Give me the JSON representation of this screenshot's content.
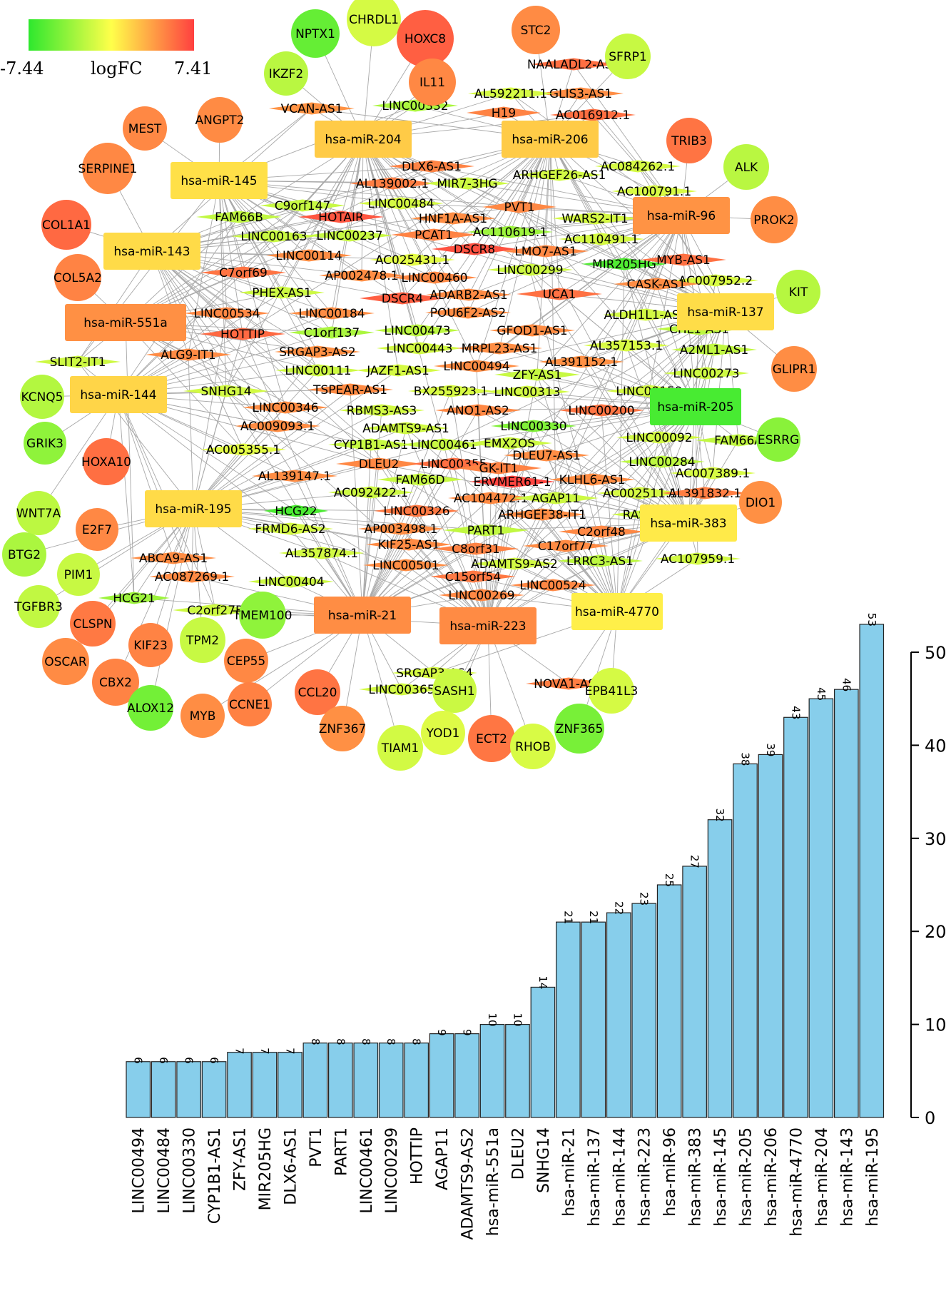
{
  "legend": {
    "min_label": "-7.44",
    "max_label": "7.41",
    "title": "logFC",
    "min": -7.44,
    "max": 7.41,
    "colors": [
      "#2ee82e",
      "#ffff4a",
      "#ff4040"
    ]
  },
  "network": {
    "mirna_nodes": [
      {
        "id": "hsa-miR-204",
        "logfc": 2.0
      },
      {
        "id": "hsa-miR-206",
        "logfc": 2.0
      },
      {
        "id": "hsa-miR-145",
        "logfc": 1.2
      },
      {
        "id": "hsa-miR-143",
        "logfc": 1.4
      },
      {
        "id": "hsa-miR-551a",
        "logfc": 4.3
      },
      {
        "id": "hsa-miR-96",
        "logfc": 4.2
      },
      {
        "id": "hsa-miR-137",
        "logfc": 1.3
      },
      {
        "id": "hsa-miR-144",
        "logfc": 1.6
      },
      {
        "id": "hsa-miR-205",
        "logfc": -6.5
      },
      {
        "id": "hsa-miR-195",
        "logfc": 1.4
      },
      {
        "id": "hsa-miR-383",
        "logfc": 0.8
      },
      {
        "id": "hsa-miR-21",
        "logfc": 4.4
      },
      {
        "id": "hsa-miR-223",
        "logfc": 4.5
      },
      {
        "id": "hsa-miR-4770",
        "logfc": 0.6
      }
    ],
    "mrna_nodes": [
      {
        "id": "NPTX1",
        "logfc": -5.5
      },
      {
        "id": "CHRDL1",
        "logfc": -1.5
      },
      {
        "id": "HOXC8",
        "logfc": 6.2
      },
      {
        "id": "STC2",
        "logfc": 4.5
      },
      {
        "id": "SFRP1",
        "logfc": -2.0
      },
      {
        "id": "IKZF2",
        "logfc": -2.5
      },
      {
        "id": "IL11",
        "logfc": 4.6
      },
      {
        "id": "MEST",
        "logfc": 4.6
      },
      {
        "id": "ANGPT2",
        "logfc": 4.5
      },
      {
        "id": "TRIB3",
        "logfc": 5.4
      },
      {
        "id": "ALK",
        "logfc": -2.5
      },
      {
        "id": "SERPINE1",
        "logfc": 4.6
      },
      {
        "id": "PROK2",
        "logfc": 4.4
      },
      {
        "id": "COL1A1",
        "logfc": 5.8
      },
      {
        "id": "COL5A2",
        "logfc": 4.8
      },
      {
        "id": "KIT",
        "logfc": -2.6
      },
      {
        "id": "GLIPR1",
        "logfc": 4.4
      },
      {
        "id": "KCNQ5",
        "logfc": -2.7
      },
      {
        "id": "GRIK3",
        "logfc": -4.0
      },
      {
        "id": "ESRRG",
        "logfc": -4.2
      },
      {
        "id": "HOXA10",
        "logfc": 5.6
      },
      {
        "id": "DIO1",
        "logfc": 4.3
      },
      {
        "id": "WNT7A",
        "logfc": -2.4
      },
      {
        "id": "E2F7",
        "logfc": 4.6
      },
      {
        "id": "BTG2",
        "logfc": -3.0
      },
      {
        "id": "PIM1",
        "logfc": -2.0
      },
      {
        "id": "TGFBR3",
        "logfc": -2.2
      },
      {
        "id": "CLSPN",
        "logfc": 5.2
      },
      {
        "id": "TMEM100",
        "logfc": -4.0
      },
      {
        "id": "KIF23",
        "logfc": 4.8
      },
      {
        "id": "TPM2",
        "logfc": -2.0
      },
      {
        "id": "OSCAR",
        "logfc": 4.5
      },
      {
        "id": "CEP55",
        "logfc": 4.6
      },
      {
        "id": "CBX2",
        "logfc": 4.8
      },
      {
        "id": "ALOX12",
        "logfc": -5.0
      },
      {
        "id": "MYB",
        "logfc": 4.4
      },
      {
        "id": "CCNE1",
        "logfc": 4.9
      },
      {
        "id": "CCL20",
        "logfc": 5.4
      },
      {
        "id": "SASH1",
        "logfc": -1.9
      },
      {
        "id": "EPB41L3",
        "logfc": -1.5
      },
      {
        "id": "ZNF367",
        "logfc": 4.3
      },
      {
        "id": "YOD1",
        "logfc": -1.2
      },
      {
        "id": "TIAM1",
        "logfc": -1.6
      },
      {
        "id": "ECT2",
        "logfc": 5.3
      },
      {
        "id": "RHOB",
        "logfc": -1.4
      },
      {
        "id": "ZNF365",
        "logfc": -4.8
      }
    ],
    "lncrna_nodes": [
      {
        "id": "NAALADL2-AS2",
        "logfc": 5.6
      },
      {
        "id": "GLIS3-AS1",
        "logfc": 4.4
      },
      {
        "id": "AL592211.1",
        "logfc": -1.5
      },
      {
        "id": "VCAN-AS1",
        "logfc": 4.2
      },
      {
        "id": "LINC00332",
        "logfc": -3.0
      },
      {
        "id": "H19",
        "logfc": 4.8
      },
      {
        "id": "AC016912.1",
        "logfc": 5.6
      },
      {
        "id": "DLX6-AS1",
        "logfc": 4.8
      },
      {
        "id": "AC084262.1",
        "logfc": -1.5
      },
      {
        "id": "AL139002.1",
        "logfc": 5.0
      },
      {
        "id": "MIR7-3HG",
        "logfc": -1.8
      },
      {
        "id": "ARHGEF26-AS1",
        "logfc": -1.6
      },
      {
        "id": "AC100791.1",
        "logfc": -1.4
      },
      {
        "id": "C9orf147",
        "logfc": -2.0
      },
      {
        "id": "LINC00484",
        "logfc": -1.5
      },
      {
        "id": "PVT1",
        "logfc": 4.6
      },
      {
        "id": "FAM66B",
        "logfc": -2.2
      },
      {
        "id": "HOTAIR",
        "logfc": 6.5
      },
      {
        "id": "HNF1A-AS1",
        "logfc": 4.4
      },
      {
        "id": "WARS2-IT1",
        "logfc": -1.5
      },
      {
        "id": "LINC00163",
        "logfc": -1.9
      },
      {
        "id": "LINC00237",
        "logfc": -2.0
      },
      {
        "id": "PCAT1",
        "logfc": 4.8
      },
      {
        "id": "AC110619.1",
        "logfc": -3.5
      },
      {
        "id": "AC110491.1",
        "logfc": -1.5
      },
      {
        "id": "LINC00114",
        "logfc": 4.4
      },
      {
        "id": "AC025431.1",
        "logfc": -1.0
      },
      {
        "id": "DSCR8",
        "logfc": 6.7
      },
      {
        "id": "LMO7-AS1",
        "logfc": 4.6
      },
      {
        "id": "MIR205HG",
        "logfc": -6.2
      },
      {
        "id": "MYB-AS1",
        "logfc": 5.5
      },
      {
        "id": "C7orf69",
        "logfc": 5.4
      },
      {
        "id": "AP002478.1",
        "logfc": 4.4
      },
      {
        "id": "LINC00460",
        "logfc": 4.6
      },
      {
        "id": "LINC00299",
        "logfc": -1.8
      },
      {
        "id": "AC007952.2",
        "logfc": -1.4
      },
      {
        "id": "PHEX-AS1",
        "logfc": -1.8
      },
      {
        "id": "DSCR4",
        "logfc": 6.2
      },
      {
        "id": "ADARB2-AS1",
        "logfc": 4.5
      },
      {
        "id": "UCA1",
        "logfc": 5.5
      },
      {
        "id": "CASK-AS1",
        "logfc": 4.4
      },
      {
        "id": "LINC00534",
        "logfc": 4.6
      },
      {
        "id": "LINC00184",
        "logfc": 4.4
      },
      {
        "id": "POU6F2-AS2",
        "logfc": 4.4
      },
      {
        "id": "ALDH1L1-AS2",
        "logfc": -1.6
      },
      {
        "id": "HOTTIP",
        "logfc": 5.8
      },
      {
        "id": "C1orf137",
        "logfc": -3.0
      },
      {
        "id": "LINC00473",
        "logfc": -2.4
      },
      {
        "id": "GFOD1-AS1",
        "logfc": 4.4
      },
      {
        "id": "AL357153.1",
        "logfc": -1.4
      },
      {
        "id": "CHL1-AS1",
        "logfc": -2.4
      },
      {
        "id": "SLIT2-IT1",
        "logfc": -1.8
      },
      {
        "id": "ALG9-IT1",
        "logfc": 4.5
      },
      {
        "id": "SRGAP3-AS2",
        "logfc": 4.3
      },
      {
        "id": "LINC00443",
        "logfc": -1.6
      },
      {
        "id": "MRPL23-AS1",
        "logfc": 4.4
      },
      {
        "id": "A2ML1-AS1",
        "logfc": -2.2
      },
      {
        "id": "AL391152.1",
        "logfc": 4.3
      },
      {
        "id": "LINC00111",
        "logfc": -1.8
      },
      {
        "id": "JAZF1-AS1",
        "logfc": -1.5
      },
      {
        "id": "LINC00494",
        "logfc": 4.4
      },
      {
        "id": "ZFY-AS1",
        "logfc": -2.0
      },
      {
        "id": "LINC00273",
        "logfc": -1.8
      },
      {
        "id": "SNHG14",
        "logfc": -1.6
      },
      {
        "id": "TSPEAR-AS1",
        "logfc": 4.5
      },
      {
        "id": "BX255923.1",
        "logfc": -1.4
      },
      {
        "id": "LINC00313",
        "logfc": -1.6
      },
      {
        "id": "LINC00159",
        "logfc": -1.5
      },
      {
        "id": "LINC00346",
        "logfc": 4.4
      },
      {
        "id": "RBMS3-AS3",
        "logfc": -1.6
      },
      {
        "id": "ANO1-AS2",
        "logfc": 4.6
      },
      {
        "id": "LINC00200",
        "logfc": 5.4
      },
      {
        "id": "AC009093.1",
        "logfc": 4.4
      },
      {
        "id": "ADAMTS9-AS1",
        "logfc": -1.7
      },
      {
        "id": "LINC00330",
        "logfc": -4.5
      },
      {
        "id": "CYP1B1-AS1",
        "logfc": -2.0
      },
      {
        "id": "LINC00461",
        "logfc": -2.0
      },
      {
        "id": "EMX2OS",
        "logfc": -1.8
      },
      {
        "id": "LINC00092",
        "logfc": -1.6
      },
      {
        "id": "FAM66A",
        "logfc": -2.2
      },
      {
        "id": "AC005355.1",
        "logfc": -1.0
      },
      {
        "id": "DLEU2",
        "logfc": 4.6
      },
      {
        "id": "LINC00355",
        "logfc": 5.6
      },
      {
        "id": "DLEU7-AS1",
        "logfc": 4.4
      },
      {
        "id": "GK-IT1",
        "logfc": 4.8
      },
      {
        "id": "LINC00284",
        "logfc": -2.4
      },
      {
        "id": "AL139147.1",
        "logfc": 4.4
      },
      {
        "id": "FAM66D",
        "logfc": -2.0
      },
      {
        "id": "ERVMER61-1",
        "logfc": 7.2
      },
      {
        "id": "KLHL6-AS1",
        "logfc": 4.4
      },
      {
        "id": "AC007389.1",
        "logfc": -1.4
      },
      {
        "id": "AC092422.1",
        "logfc": -1.8
      },
      {
        "id": "AC104472.1",
        "logfc": 4.5
      },
      {
        "id": "AGAP11",
        "logfc": -1.8
      },
      {
        "id": "AC002511.1",
        "logfc": -1.5
      },
      {
        "id": "AL391832.1",
        "logfc": 5.0
      },
      {
        "id": "HCG22",
        "logfc": -6.4
      },
      {
        "id": "LINC00326",
        "logfc": 5.2
      },
      {
        "id": "ARHGEF38-IT1",
        "logfc": 4.4
      },
      {
        "id": "RASA3-IT1",
        "logfc": -1.8
      },
      {
        "id": "FRMD6-AS2",
        "logfc": -1.5
      },
      {
        "id": "AP003498.1",
        "logfc": 4.4
      },
      {
        "id": "PART1",
        "logfc": -2.2
      },
      {
        "id": "C2orf48",
        "logfc": 4.6
      },
      {
        "id": "AL357874.1",
        "logfc": -1.6
      },
      {
        "id": "KIF25-AS1",
        "logfc": 4.5
      },
      {
        "id": "C8orf31",
        "logfc": 4.8
      },
      {
        "id": "C17orf77",
        "logfc": 4.5
      },
      {
        "id": "ABCA9-AS1",
        "logfc": 4.4
      },
      {
        "id": "ADAMTS9-AS2",
        "logfc": -1.6
      },
      {
        "id": "LRRC3-AS1",
        "logfc": -2.4
      },
      {
        "id": "AC107959.1",
        "logfc": -1.6
      },
      {
        "id": "AC087269.1",
        "logfc": 4.5
      },
      {
        "id": "LINC00501",
        "logfc": 4.4
      },
      {
        "id": "C15orf54",
        "logfc": 5.2
      },
      {
        "id": "LINC00404",
        "logfc": -1.8
      },
      {
        "id": "LINC00524",
        "logfc": 4.6
      },
      {
        "id": "LINC00269",
        "logfc": 4.6
      },
      {
        "id": "HCG21",
        "logfc": -3.5
      },
      {
        "id": "C2orf27B",
        "logfc": -1.8
      },
      {
        "id": "SRGAP3-AS4",
        "logfc": -1.5
      },
      {
        "id": "LINC00365",
        "logfc": -1.6
      },
      {
        "id": "NOVA1-AS1",
        "logfc": 5.0
      }
    ]
  },
  "chart_data": {
    "type": "bar",
    "categories": [
      "LINC00494",
      "LINC00484",
      "LINC00330",
      "CYP1B1-AS1",
      "ZFY-AS1",
      "MIR205HG",
      "DLX6-AS1",
      "PVT1",
      "PART1",
      "LINC00461",
      "LINC00299",
      "HOTTIP",
      "AGAP11",
      "ADAMTS9-AS2",
      "hsa-miR-551a",
      "DLEU2",
      "SNHG14",
      "hsa-miR-21",
      "hsa-miR-137",
      "hsa-miR-144",
      "hsa-miR-223",
      "hsa-miR-96",
      "hsa-miR-383",
      "hsa-miR-145",
      "hsa-miR-205",
      "hsa-miR-206",
      "hsa-miR-4770",
      "hsa-miR-204",
      "hsa-miR-143",
      "hsa-miR-195"
    ],
    "values": [
      6,
      6,
      6,
      6,
      7,
      7,
      7,
      8,
      8,
      8,
      8,
      8,
      9,
      9,
      10,
      10,
      14,
      21,
      21,
      22,
      23,
      25,
      27,
      32,
      38,
      39,
      43,
      45,
      46,
      53
    ],
    "value_labels": [
      "6",
      "6",
      "6",
      "6",
      "7",
      "7",
      "7",
      "8",
      "8",
      "8",
      "8",
      "8",
      "9",
      "9",
      "10",
      "10",
      "14",
      "21",
      "21",
      "22",
      "23",
      "25",
      "27",
      "32",
      "38",
      "39",
      "43",
      "45",
      "46",
      "53"
    ],
    "ylim": [
      0,
      53
    ],
    "yticks": [
      0,
      10,
      20,
      30,
      40,
      50
    ],
    "ytick_labels": [
      "0",
      "10",
      "20",
      "30",
      "40",
      "50"
    ],
    "bar_color": "#87ceeb"
  }
}
